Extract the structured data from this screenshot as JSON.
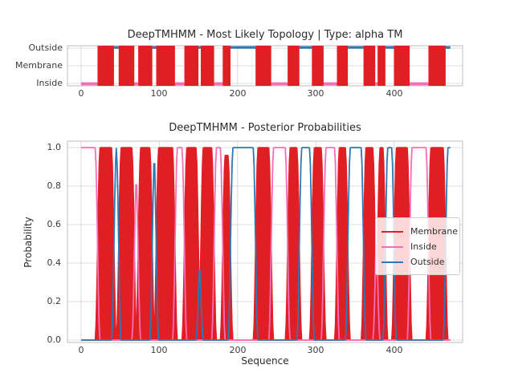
{
  "colors": {
    "membrane": "#e01f25",
    "inside": "#f56eb5",
    "outside": "#2e78b4",
    "grid": "#dcdcdc",
    "frame": "#c9c9c9",
    "background": "#ffffff"
  },
  "chart_data": [
    {
      "type": "line",
      "role": "most-likely-topology",
      "title": "DeepTMHMM - Most Likely Topology | Type: alpha TM",
      "y_categories": [
        "Outside",
        "Membrane",
        "Inside"
      ],
      "x_ticks": [
        0,
        100,
        200,
        300,
        400
      ],
      "sequence_length": 472,
      "grid": true,
      "regions": [
        [
          "Inside",
          0,
          21
        ],
        [
          "Membrane",
          21,
          42
        ],
        [
          "Outside",
          42,
          48
        ],
        [
          "Membrane",
          48,
          68
        ],
        [
          "Inside",
          68,
          73
        ],
        [
          "Membrane",
          73,
          91
        ],
        [
          "Outside",
          91,
          96
        ],
        [
          "Membrane",
          96,
          120
        ],
        [
          "Inside",
          120,
          132
        ],
        [
          "Membrane",
          132,
          150
        ],
        [
          "Outside",
          150,
          153
        ],
        [
          "Membrane",
          153,
          170
        ],
        [
          "Inside",
          170,
          181
        ],
        [
          "Membrane",
          181,
          191
        ],
        [
          "Outside",
          191,
          223
        ],
        [
          "Membrane",
          223,
          243
        ],
        [
          "Inside",
          243,
          264
        ],
        [
          "Membrane",
          264,
          279
        ],
        [
          "Outside",
          279,
          295
        ],
        [
          "Membrane",
          295,
          310
        ],
        [
          "Inside",
          310,
          327
        ],
        [
          "Membrane",
          327,
          341
        ],
        [
          "Outside",
          341,
          361
        ],
        [
          "Membrane",
          361,
          376
        ],
        [
          "Inside",
          376,
          379
        ],
        [
          "Membrane",
          379,
          389
        ],
        [
          "Outside",
          389,
          400
        ],
        [
          "Membrane",
          400,
          420
        ],
        [
          "Inside",
          420,
          444
        ],
        [
          "Membrane",
          444,
          466
        ],
        [
          "Outside",
          466,
          472
        ]
      ]
    },
    {
      "type": "area",
      "role": "posterior-probabilities",
      "title": "DeepTMHMM - Posterior Probabilities",
      "xlabel": "Sequence",
      "ylabel": "Probability",
      "x_ticks": [
        0,
        100,
        200,
        300,
        400
      ],
      "y_ticks": [
        "0.0",
        "0.2",
        "0.4",
        "0.6",
        "0.8",
        "1.0"
      ],
      "ylim": [
        0,
        1.03
      ],
      "grid": true,
      "legend": {
        "position": "center-right",
        "entries": [
          "Membrane",
          "Inside",
          "Outside"
        ]
      },
      "series": [
        {
          "name": "Membrane",
          "style": "filled-area",
          "peak_value": 1.0
        },
        {
          "name": "Inside",
          "style": "line",
          "peak_value": 1.0
        },
        {
          "name": "Outside",
          "style": "line",
          "peak_value": 1.0
        }
      ],
      "regions": [
        [
          "Inside",
          0,
          21,
          1.0
        ],
        [
          "Membrane",
          21,
          42,
          1.0
        ],
        [
          "Outside",
          42,
          48,
          1.0
        ],
        [
          "Membrane",
          48,
          68,
          1.0
        ],
        [
          "Inside",
          68,
          73,
          0.88
        ],
        [
          "Membrane",
          73,
          91,
          1.0
        ],
        [
          "Outside",
          91,
          96,
          1.0
        ],
        [
          "Membrane",
          96,
          120,
          1.0
        ],
        [
          "Inside",
          120,
          132,
          1.0
        ],
        [
          "Membrane",
          132,
          150,
          1.0
        ],
        [
          "Outside",
          150,
          153,
          0.49
        ],
        [
          "Membrane",
          153,
          170,
          1.0
        ],
        [
          "Inside",
          170,
          181,
          1.0
        ],
        [
          "Membrane",
          181,
          191,
          0.96
        ],
        [
          "Outside",
          191,
          223,
          1.0
        ],
        [
          "Membrane",
          223,
          243,
          1.0
        ],
        [
          "Inside",
          243,
          264,
          1.0
        ],
        [
          "Membrane",
          264,
          279,
          1.0
        ],
        [
          "Outside",
          279,
          295,
          1.0
        ],
        [
          "Membrane",
          295,
          310,
          1.0
        ],
        [
          "Inside",
          310,
          327,
          1.0
        ],
        [
          "Membrane",
          327,
          341,
          1.0
        ],
        [
          "Outside",
          341,
          361,
          1.0
        ],
        [
          "Membrane",
          361,
          376,
          1.0
        ],
        [
          "Inside",
          376,
          379,
          0.68
        ],
        [
          "Membrane",
          379,
          389,
          1.0
        ],
        [
          "Outside",
          389,
          400,
          1.0
        ],
        [
          "Membrane",
          400,
          420,
          1.0
        ],
        [
          "Inside",
          420,
          444,
          1.0
        ],
        [
          "Membrane",
          444,
          466,
          1.0
        ],
        [
          "Outside",
          466,
          472,
          1.0
        ]
      ]
    }
  ]
}
